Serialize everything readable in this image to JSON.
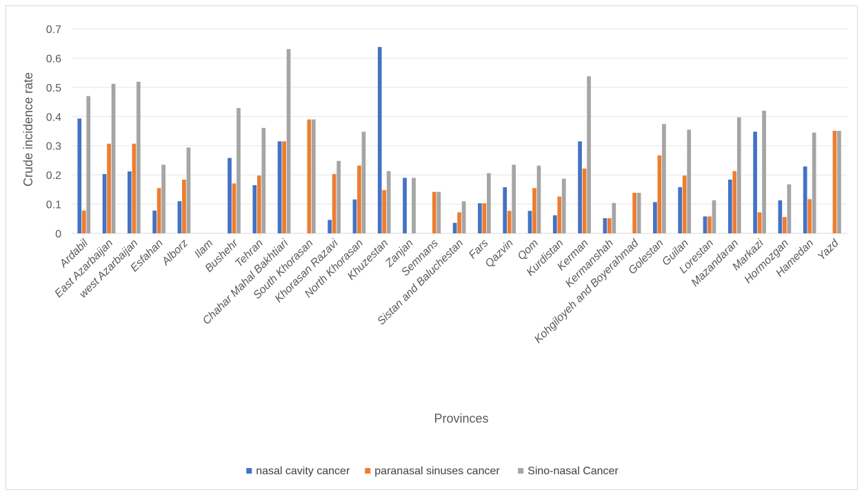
{
  "chart_data": {
    "type": "bar",
    "title": "",
    "xlabel": "Provinces",
    "ylabel": "Crude incidence rate",
    "ylim": [
      0,
      0.7
    ],
    "yticks": [
      "0",
      "0.1",
      "0.2",
      "0.3",
      "0.4",
      "0.5",
      "0.6",
      "0.7"
    ],
    "grid": true,
    "legend_position": "bottom",
    "categories": [
      "Ardabil",
      "East Azarbaijan",
      "west Azarbaijan",
      "Esfahan",
      "Alborz",
      "Ilam",
      "Bushehr",
      "Tehran",
      "Chahar Mahal Bakhtiari",
      "South Khorasan",
      "Khorasan Razavi",
      "North Khorasan",
      "Khuzestan",
      "Zanjan",
      "Semnans",
      "Sistan and Baluchestan",
      "Fars",
      "Qazvin",
      "Qom",
      "Kurdistan",
      "Kerman",
      "Kermanshah",
      "Kohgiloyeh and Boyerahmad",
      "Golestan",
      "Guilan",
      "Lorestan",
      "Mazandaran",
      "Markazi",
      "Hormozgan",
      "Hamedan",
      "Yazd"
    ],
    "series": [
      {
        "name": "nasal cavity cancer",
        "color": "#4472c4",
        "values": [
          0.393,
          0.203,
          0.212,
          0.078,
          0.11,
          0,
          0.258,
          0.165,
          0.315,
          0,
          0.046,
          0.116,
          0.638,
          0.19,
          0,
          0.036,
          0.103,
          0.158,
          0.077,
          0.062,
          0.315,
          0.052,
          0,
          0.107,
          0.158,
          0.058,
          0.184,
          0.348,
          0.113,
          0.229,
          0
        ]
      },
      {
        "name": "paranasal  sinuses cancer",
        "color": "#ed7d31",
        "values": [
          0.078,
          0.307,
          0.307,
          0.155,
          0.184,
          0,
          0.171,
          0.198,
          0.315,
          0.39,
          0.203,
          0.232,
          0.148,
          0,
          0.142,
          0.072,
          0.103,
          0.077,
          0.155,
          0.126,
          0.222,
          0.052,
          0.139,
          0.267,
          0.198,
          0.058,
          0.213,
          0.072,
          0.056,
          0.117,
          0.351
        ]
      },
      {
        "name": "Sino-nasal Cancer",
        "color": "#a5a5a5",
        "values": [
          0.47,
          0.512,
          0.519,
          0.235,
          0.294,
          0,
          0.429,
          0.361,
          0.631,
          0.39,
          0.248,
          0.348,
          0.213,
          0.19,
          0.142,
          0.11,
          0.206,
          0.235,
          0.232,
          0.187,
          0.538,
          0.104,
          0.139,
          0.374,
          0.355,
          0.113,
          0.397,
          0.42,
          0.168,
          0.345,
          0.351
        ]
      }
    ]
  }
}
